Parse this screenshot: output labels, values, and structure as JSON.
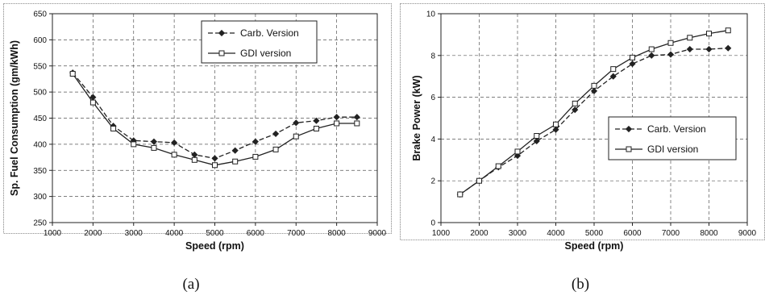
{
  "chart_data": [
    {
      "type": "line",
      "caption": "(a)",
      "xlabel": "Speed (rpm)",
      "ylabel": "Sp. Fuel Consumption (gm/kWh)",
      "xlim": [
        1000,
        9000
      ],
      "ylim": [
        250,
        650
      ],
      "xticks": [
        1000,
        2000,
        3000,
        4000,
        5000,
        6000,
        7000,
        8000,
        9000
      ],
      "yticks": [
        250,
        300,
        350,
        400,
        450,
        500,
        550,
        600,
        650
      ],
      "xtick_labels": [
        "1000",
        "2000",
        "3000",
        "4000",
        "5000",
        "6000",
        "7000",
        "8000",
        "9000"
      ],
      "ytick_labels": [
        "250",
        "300",
        "350",
        "400",
        "450",
        "500",
        "550",
        "600",
        "650"
      ],
      "grid": true,
      "legend_position": "top-right",
      "x": [
        1500,
        2000,
        2500,
        3000,
        3500,
        4000,
        4500,
        5000,
        5500,
        6000,
        6500,
        7000,
        7500,
        8000,
        8500
      ],
      "series": [
        {
          "name": "Carb. Version",
          "style": "dashed",
          "marker": "diamond",
          "values": [
            537,
            490,
            435,
            407,
            405,
            403,
            380,
            373,
            388,
            405,
            420,
            441,
            445,
            452,
            452
          ]
        },
        {
          "name": "GDI version",
          "style": "solid",
          "marker": "square",
          "values": [
            535,
            480,
            430,
            400,
            393,
            380,
            370,
            360,
            367,
            376,
            390,
            415,
            430,
            440,
            440
          ]
        }
      ]
    },
    {
      "type": "line",
      "caption": "(b)",
      "xlabel": "Speed (rpm)",
      "ylabel": "Brake Power (kW)",
      "xlim": [
        1000,
        9000
      ],
      "ylim": [
        0,
        10
      ],
      "xticks": [
        1000,
        2000,
        3000,
        4000,
        5000,
        6000,
        7000,
        8000,
        9000
      ],
      "yticks": [
        0,
        2,
        4,
        6,
        8,
        10
      ],
      "xtick_labels": [
        "1000",
        "2000",
        "3000",
        "4000",
        "5000",
        "6000",
        "7000",
        "8000",
        "9000"
      ],
      "ytick_labels": [
        "0",
        "2",
        "4",
        "6",
        "8",
        "10"
      ],
      "grid": true,
      "legend_position": "middle-right",
      "x": [
        1500,
        2000,
        2500,
        3000,
        3500,
        4000,
        4500,
        5000,
        5500,
        6000,
        6500,
        7000,
        7500,
        8000,
        8500
      ],
      "series": [
        {
          "name": "Carb. Version",
          "style": "dashed",
          "marker": "diamond",
          "values": [
            1.35,
            2.0,
            2.65,
            3.2,
            3.9,
            4.45,
            5.4,
            6.3,
            7.0,
            7.6,
            8.0,
            8.05,
            8.3,
            8.3,
            8.35
          ]
        },
        {
          "name": "GDI version",
          "style": "solid",
          "marker": "square",
          "values": [
            1.35,
            2.0,
            2.7,
            3.4,
            4.15,
            4.7,
            5.7,
            6.55,
            7.35,
            7.9,
            8.3,
            8.6,
            8.85,
            9.05,
            9.2
          ]
        }
      ]
    }
  ]
}
